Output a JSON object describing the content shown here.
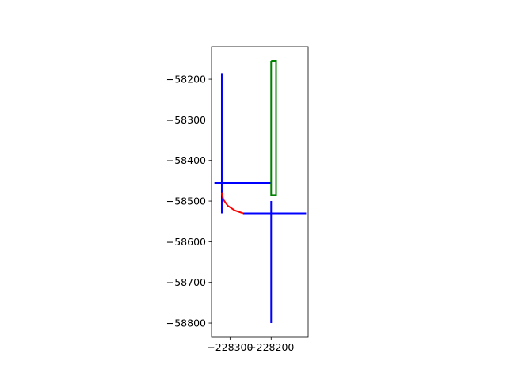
{
  "chart_data": {
    "type": "line",
    "title": "",
    "xlabel": "",
    "ylabel": "",
    "xlim": [
      -228345,
      -228110
    ],
    "ylim": [
      -58835,
      -58120
    ],
    "xticks": [
      {
        "value": -228300,
        "label": "−228300"
      },
      {
        "value": -228200,
        "label": "−228200"
      }
    ],
    "yticks": [
      {
        "value": -58200,
        "label": "−58200"
      },
      {
        "value": -58300,
        "label": "−58300"
      },
      {
        "value": -58400,
        "label": "−58400"
      },
      {
        "value": -58500,
        "label": "−58500"
      },
      {
        "value": -58600,
        "label": "−58600"
      },
      {
        "value": -58700,
        "label": "−58700"
      },
      {
        "value": -58800,
        "label": "−58800"
      }
    ],
    "grid": false,
    "legend": "none",
    "series": [
      {
        "color": "#0000ff",
        "points": [
          [
            -228320,
            -58185
          ],
          [
            -228320,
            -58530
          ]
        ]
      },
      {
        "color": "#0000ff",
        "points": [
          [
            -228338,
            -58455
          ],
          [
            -228200,
            -58455
          ]
        ]
      },
      {
        "color": "#0000ff",
        "points": [
          [
            -228200,
            -58500
          ],
          [
            -228200,
            -58800
          ]
        ]
      },
      {
        "color": "#0000ff",
        "points": [
          [
            -228268,
            -58530
          ],
          [
            -228115,
            -58530
          ]
        ]
      },
      {
        "color": "#ff0000",
        "points": [
          [
            -228320,
            -58480
          ],
          [
            -228316.2,
            -58496.5
          ],
          [
            -228305.4,
            -58511.5
          ],
          [
            -228288.5,
            -58523
          ],
          [
            -228268,
            -58530
          ]
        ]
      },
      {
        "color": "#008000",
        "points": [
          [
            -228200,
            -58155
          ],
          [
            -228188,
            -58155
          ],
          [
            -228188,
            -58485
          ],
          [
            -228200,
            -58485
          ],
          [
            -228200,
            -58155
          ]
        ]
      }
    ]
  }
}
